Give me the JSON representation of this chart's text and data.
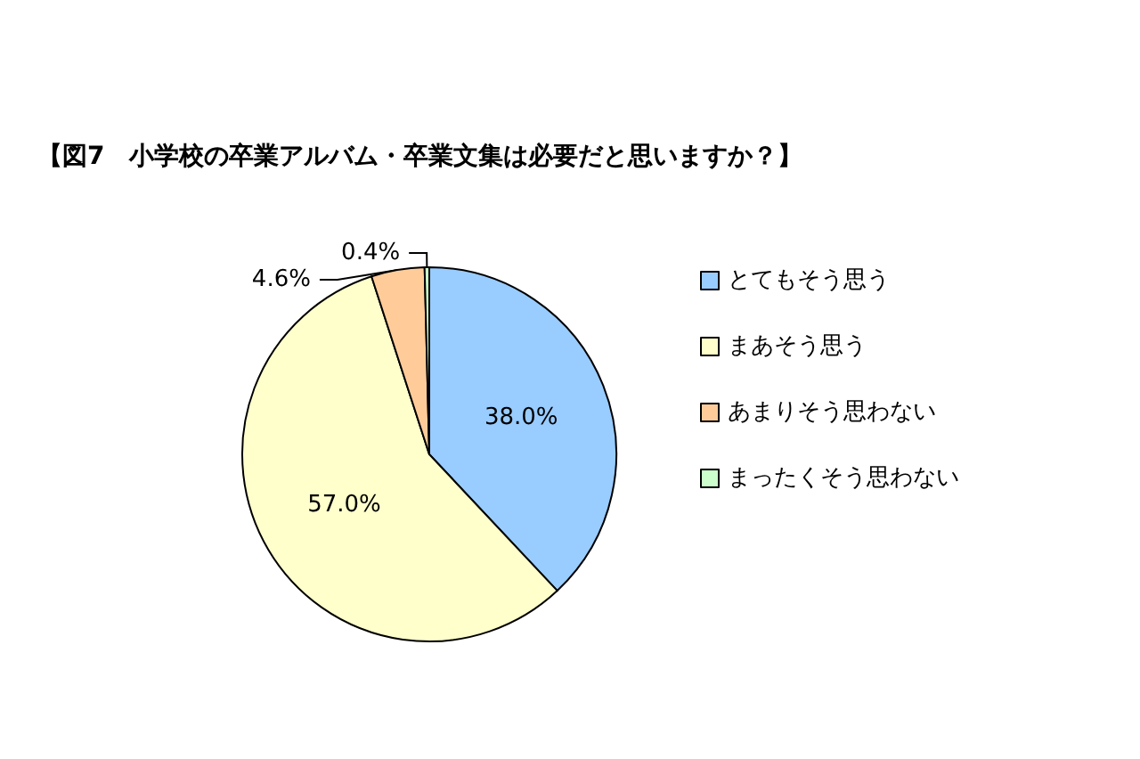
{
  "chart_data": {
    "type": "pie",
    "title": "【図7　小学校の卒業アルバム・卒業文集は必要だと思いますか？】",
    "categories": [
      "とてもそう思う",
      "まあそう思う",
      "あまりそう思わない",
      "まったくそう思わない"
    ],
    "values": [
      38.0,
      57.0,
      4.6,
      0.4
    ],
    "colors": [
      "#99ccff",
      "#ffffcc",
      "#ffcc99",
      "#ccffcc"
    ],
    "value_labels": [
      "38.0%",
      "57.0%",
      "4.6%",
      "0.4%"
    ],
    "legend": "right"
  }
}
